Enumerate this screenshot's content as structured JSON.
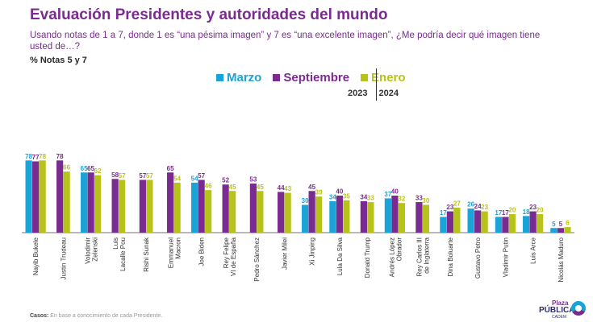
{
  "header": {
    "title": "Evaluación Presidentes y autoridades del mundo",
    "subtitle": "Usando notas de 1 a 7, donde 1 es “una pésima imagen” y 7 es “una excelente imagen”, ¿Me podría decir qué imagen tiene usted de…?",
    "metric": "% Notas 5 y 7"
  },
  "legend": {
    "items": [
      {
        "label": "Marzo",
        "color": "#1aa3d6"
      },
      {
        "label": "Septiembre",
        "color": "#7a2b8f"
      },
      {
        "label": "Enero",
        "color": "#b7c21b"
      }
    ],
    "year_left": "2023",
    "year_right": "2024"
  },
  "footnote": {
    "label": "Casos:",
    "text": "En base a conocimiento de cada Presidente."
  },
  "logo": {
    "top": "Plaza",
    "main": "PÚBLICA",
    "sub": "CADEM"
  },
  "chart_data": {
    "type": "bar",
    "ylim": [
      0,
      100
    ],
    "categories": [
      "Nayib Bukele",
      "Justin Trudeau",
      "Volodimir Zelenski",
      "Luis Lacalle Pou",
      "Rishi Sunak",
      "Emmanuel Macron",
      "Joe Biden",
      "Rey Felipe VI de España",
      "Pedro Sánchez",
      "Javier Milei",
      "Xi Jinping",
      "Lula Da Silva",
      "Donald Trump",
      "Andrés López Obrador",
      "Rey Carlos III de Inglaterra",
      "Dina Boluarte",
      "Gustavo Petro",
      "Vladimir Putin",
      "Luis Arce",
      "Nicolás Maduro"
    ],
    "series": [
      {
        "name": "Marzo",
        "color": "#1aa3d6",
        "values": [
          78,
          null,
          65,
          null,
          null,
          null,
          54,
          null,
          null,
          null,
          30,
          34,
          null,
          37,
          null,
          17,
          26,
          17,
          18,
          5
        ]
      },
      {
        "name": "Septiembre",
        "color": "#7a2b8f",
        "values": [
          77,
          78,
          65,
          58,
          57,
          65,
          57,
          52,
          53,
          44,
          45,
          40,
          34,
          40,
          33,
          23,
          24,
          17,
          23,
          5
        ]
      },
      {
        "name": "Enero",
        "color": "#b7c21b",
        "values": [
          78,
          66,
          62,
          57,
          57,
          54,
          46,
          45,
          45,
          43,
          39,
          35,
          33,
          32,
          30,
          27,
          23,
          20,
          20,
          6
        ]
      }
    ]
  }
}
